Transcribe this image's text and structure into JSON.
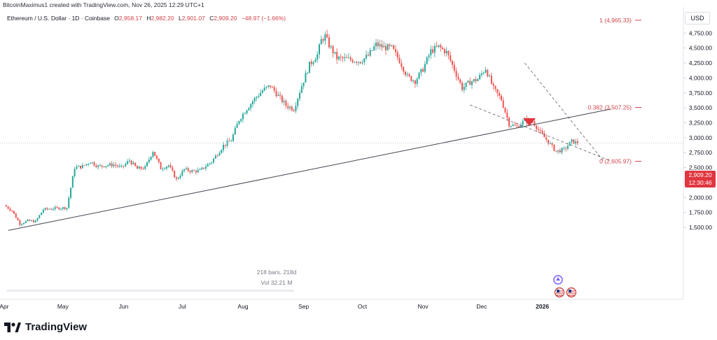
{
  "attribution": "BitcoinMaximus1 created with TradingView.com, Nov 26, 2025 12:29 UTC+1",
  "legend": {
    "symbol": "Ethereum / U.S. Dollar · 1D · Coinbase",
    "open_label": "O",
    "open": "2,958.17",
    "high_label": "H",
    "high": "2,982.20",
    "low_label": "L",
    "low": "2,901.07",
    "close_label": "C",
    "close": "2,909.20",
    "change": "−48.97 (−1.66%)"
  },
  "currency": "USD",
  "price_tag": {
    "price": "2,909.20",
    "countdown": "12:30:46"
  },
  "bars_info": {
    "bars": "218 bars, 218d",
    "volume": "Vol 32.21 M"
  },
  "brand": {
    "name": "TradingView"
  },
  "colors": {
    "up": "#26a69a",
    "down": "#ef5350",
    "fib": "#d1434a",
    "trendline": "#434651",
    "channel": "#5d606b"
  },
  "chart_data": {
    "type": "candlestick",
    "y_ticks": [
      {
        "value": 1500,
        "label": "1,500.00"
      },
      {
        "value": 1750,
        "label": "1,750.00"
      },
      {
        "value": 2000,
        "label": "2,000.00"
      },
      {
        "value": 2250,
        "label": "2,250.00"
      },
      {
        "value": 2500,
        "label": "2,500.00"
      },
      {
        "value": 2750,
        "label": "2,750.00"
      },
      {
        "value": 3000,
        "label": "3,000.00"
      },
      {
        "value": 3250,
        "label": "3,250.00"
      },
      {
        "value": 3500,
        "label": "3,500.00"
      },
      {
        "value": 3750,
        "label": "3,750.00"
      },
      {
        "value": 4000,
        "label": "4,000.00"
      },
      {
        "value": 4250,
        "label": "4,250.00"
      },
      {
        "value": 4500,
        "label": "4,500.00"
      },
      {
        "value": 4750,
        "label": "4,750.00"
      }
    ],
    "x_ticks": [
      {
        "day": 0,
        "label": "Apr"
      },
      {
        "day": 30,
        "label": "May"
      },
      {
        "day": 61,
        "label": "Jun"
      },
      {
        "day": 91,
        "label": "Jul"
      },
      {
        "day": 122,
        "label": "Aug"
      },
      {
        "day": 153,
        "label": "Sep"
      },
      {
        "day": 183,
        "label": "Oct"
      },
      {
        "day": 214,
        "label": "Nov"
      },
      {
        "day": 244,
        "label": "Dec"
      },
      {
        "day": 275,
        "label": "2026"
      }
    ],
    "fib_levels": [
      {
        "value": 4965.33,
        "label": "1 (4,965.33)"
      },
      {
        "value": 3507.25,
        "label": "0.382 (3,507.25)"
      },
      {
        "value": 2605.97,
        "label": "0 (2,605.97)"
      }
    ],
    "last_price": 2909.2,
    "anchors": [
      [
        0,
        1870
      ],
      [
        4,
        1780
      ],
      [
        8,
        1560
      ],
      [
        12,
        1610
      ],
      [
        16,
        1600
      ],
      [
        20,
        1800
      ],
      [
        26,
        1820
      ],
      [
        32,
        1830
      ],
      [
        36,
        2500
      ],
      [
        40,
        2520
      ],
      [
        44,
        2600
      ],
      [
        48,
        2520
      ],
      [
        52,
        2540
      ],
      [
        56,
        2550
      ],
      [
        60,
        2500
      ],
      [
        64,
        2620
      ],
      [
        68,
        2480
      ],
      [
        72,
        2500
      ],
      [
        76,
        2780
      ],
      [
        80,
        2490
      ],
      [
        84,
        2540
      ],
      [
        88,
        2300
      ],
      [
        92,
        2470
      ],
      [
        96,
        2440
      ],
      [
        100,
        2450
      ],
      [
        106,
        2600
      ],
      [
        112,
        2870
      ],
      [
        116,
        2960
      ],
      [
        120,
        3300
      ],
      [
        124,
        3490
      ],
      [
        128,
        3650
      ],
      [
        132,
        3790
      ],
      [
        136,
        3870
      ],
      [
        140,
        3700
      ],
      [
        144,
        3540
      ],
      [
        148,
        3480
      ],
      [
        152,
        3870
      ],
      [
        156,
        4220
      ],
      [
        160,
        4390
      ],
      [
        162,
        4630
      ],
      [
        164,
        4700
      ],
      [
        166,
        4550
      ],
      [
        170,
        4330
      ],
      [
        174,
        4320
      ],
      [
        178,
        4300
      ],
      [
        182,
        4280
      ],
      [
        186,
        4370
      ],
      [
        190,
        4560
      ],
      [
        194,
        4510
      ],
      [
        198,
        4500
      ],
      [
        202,
        4290
      ],
      [
        206,
        4020
      ],
      [
        210,
        3950
      ],
      [
        214,
        4150
      ],
      [
        218,
        4450
      ],
      [
        222,
        4520
      ],
      [
        226,
        4430
      ],
      [
        230,
        4140
      ],
      [
        234,
        3830
      ],
      [
        238,
        3930
      ],
      [
        242,
        3980
      ],
      [
        246,
        4160
      ],
      [
        250,
        3820
      ],
      [
        254,
        3640
      ],
      [
        258,
        3230
      ],
      [
        262,
        3180
      ],
      [
        266,
        3290
      ],
      [
        270,
        3280
      ],
      [
        274,
        3080
      ],
      [
        278,
        2930
      ],
      [
        282,
        2770
      ],
      [
        286,
        2800
      ],
      [
        290,
        2940
      ],
      [
        293,
        2909
      ]
    ],
    "trendlines": [
      [
        [
          2,
          1450
        ],
        [
          310,
          3480
        ]
      ],
      [
        [
          266,
          4250
        ],
        [
          306,
          2620
        ]
      ],
      [
        [
          238,
          3550
        ],
        [
          310,
          2610
        ]
      ]
    ]
  }
}
